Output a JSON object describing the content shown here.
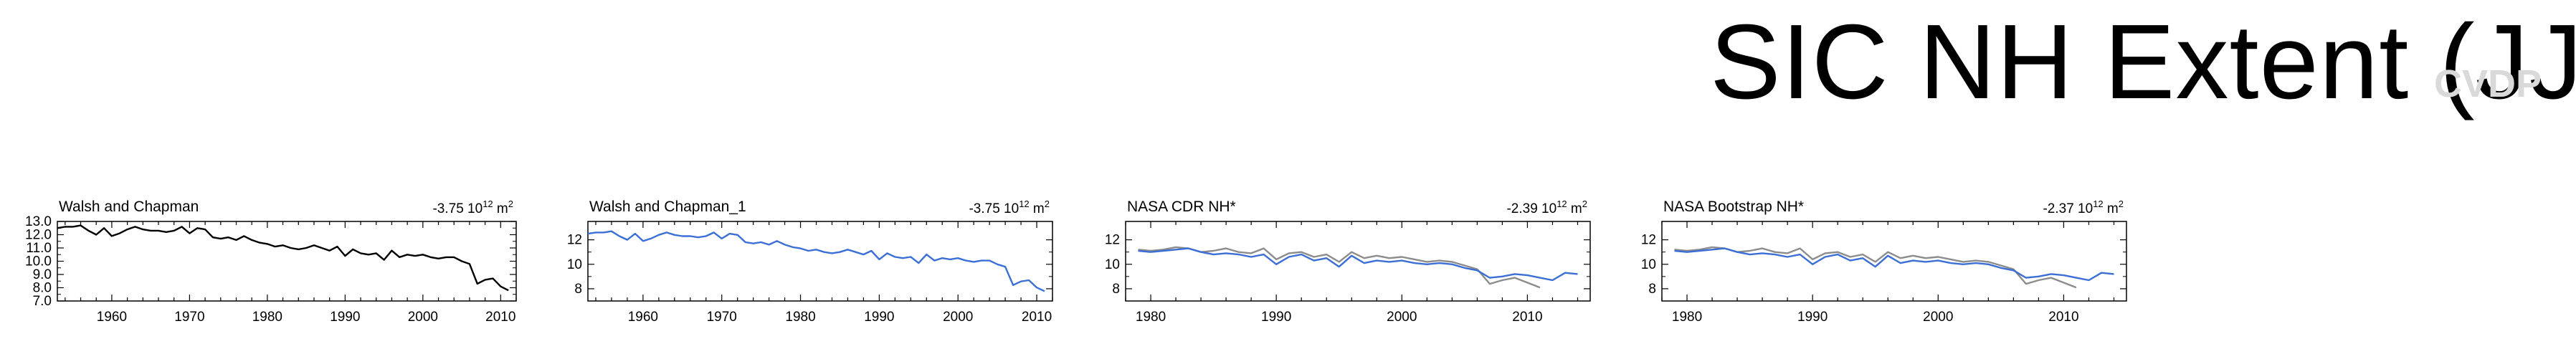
{
  "title": "SIC NH Extent (JJA)",
  "watermark": "CVDP",
  "colors": {
    "obs": "#000000",
    "model": "#3b6fd6",
    "reference": "#8c8c8c"
  },
  "chart_data": [
    {
      "type": "line",
      "title": "Walsh and Chapman",
      "trend": "-3.75 10",
      "trend_exp": "12",
      "trend_unit": "m",
      "trend_unit_exp": "2",
      "xlim": [
        1953,
        2012
      ],
      "ylim": [
        7.0,
        13.0
      ],
      "xticks": [
        1960,
        1970,
        1980,
        1990,
        2000,
        2010
      ],
      "yticks": [
        7.0,
        8.0,
        9.0,
        10.0,
        11.0,
        12.0,
        13.0
      ],
      "ytick_labels": [
        "7.0",
        "8.0",
        "9.0",
        "10.0",
        "11.0",
        "12.0",
        "13.0"
      ],
      "series": [
        {
          "color": "obs",
          "x": [
            1953,
            1954,
            1955,
            1956,
            1957,
            1958,
            1959,
            1960,
            1961,
            1962,
            1963,
            1964,
            1965,
            1966,
            1967,
            1968,
            1969,
            1970,
            1971,
            1972,
            1973,
            1974,
            1975,
            1976,
            1977,
            1978,
            1979,
            1980,
            1981,
            1982,
            1983,
            1984,
            1985,
            1986,
            1987,
            1988,
            1989,
            1990,
            1991,
            1992,
            1993,
            1994,
            1995,
            1996,
            1997,
            1998,
            1999,
            2000,
            2001,
            2002,
            2003,
            2004,
            2005,
            2006,
            2007,
            2008,
            2009,
            2010,
            2011
          ],
          "y": [
            12.5,
            12.6,
            12.6,
            12.7,
            12.3,
            12.0,
            12.5,
            11.9,
            12.1,
            12.4,
            12.6,
            12.4,
            12.3,
            12.3,
            12.2,
            12.3,
            12.6,
            12.1,
            12.5,
            12.4,
            11.8,
            11.7,
            11.8,
            11.6,
            11.9,
            11.6,
            11.4,
            11.3,
            11.1,
            11.2,
            11.0,
            10.9,
            11.0,
            11.2,
            11.0,
            10.8,
            11.1,
            10.4,
            10.9,
            10.6,
            10.5,
            10.6,
            10.1,
            10.8,
            10.3,
            10.5,
            10.4,
            10.5,
            10.3,
            10.2,
            10.3,
            10.3,
            10.0,
            9.8,
            8.3,
            8.6,
            8.7,
            8.1,
            7.8
          ]
        }
      ]
    },
    {
      "type": "line",
      "title": "Walsh and Chapman_1",
      "trend": "-3.75 10",
      "trend_exp": "12",
      "trend_unit": "m",
      "trend_unit_exp": "2",
      "xlim": [
        1953,
        2012
      ],
      "ylim": [
        7.0,
        13.5
      ],
      "xticks": [
        1960,
        1970,
        1980,
        1990,
        2000,
        2010
      ],
      "yticks": [
        8,
        10,
        12
      ],
      "ytick_labels": [
        "8",
        "10",
        "12"
      ],
      "series": [
        {
          "color": "model",
          "x": [
            1953,
            1954,
            1955,
            1956,
            1957,
            1958,
            1959,
            1960,
            1961,
            1962,
            1963,
            1964,
            1965,
            1966,
            1967,
            1968,
            1969,
            1970,
            1971,
            1972,
            1973,
            1974,
            1975,
            1976,
            1977,
            1978,
            1979,
            1980,
            1981,
            1982,
            1983,
            1984,
            1985,
            1986,
            1987,
            1988,
            1989,
            1990,
            1991,
            1992,
            1993,
            1994,
            1995,
            1996,
            1997,
            1998,
            1999,
            2000,
            2001,
            2002,
            2003,
            2004,
            2005,
            2006,
            2007,
            2008,
            2009,
            2010,
            2011
          ],
          "y": [
            12.5,
            12.6,
            12.6,
            12.7,
            12.3,
            12.0,
            12.5,
            11.9,
            12.1,
            12.4,
            12.6,
            12.4,
            12.3,
            12.3,
            12.2,
            12.3,
            12.6,
            12.1,
            12.5,
            12.4,
            11.8,
            11.7,
            11.8,
            11.6,
            11.9,
            11.6,
            11.4,
            11.3,
            11.1,
            11.2,
            11.0,
            10.9,
            11.0,
            11.2,
            11.0,
            10.8,
            11.1,
            10.4,
            10.9,
            10.6,
            10.5,
            10.6,
            10.1,
            10.8,
            10.3,
            10.5,
            10.4,
            10.5,
            10.3,
            10.2,
            10.3,
            10.3,
            10.0,
            9.8,
            8.3,
            8.6,
            8.7,
            8.1,
            7.8
          ]
        }
      ]
    },
    {
      "type": "line",
      "title": "NASA CDR NH*",
      "trend": "-2.39 10",
      "trend_exp": "12",
      "trend_unit": "m",
      "trend_unit_exp": "2",
      "xlim": [
        1978,
        2015
      ],
      "ylim": [
        7.0,
        13.5
      ],
      "xticks": [
        1980,
        1990,
        2000,
        2010
      ],
      "yticks": [
        8,
        10,
        12
      ],
      "ytick_labels": [
        "8",
        "10",
        "12"
      ],
      "series": [
        {
          "color": "reference",
          "x": [
            1979,
            1980,
            1981,
            1982,
            1983,
            1984,
            1985,
            1986,
            1987,
            1988,
            1989,
            1990,
            1991,
            1992,
            1993,
            1994,
            1995,
            1996,
            1997,
            1998,
            1999,
            2000,
            2001,
            2002,
            2003,
            2004,
            2005,
            2006,
            2007,
            2008,
            2009,
            2010,
            2011
          ],
          "y": [
            11.2,
            11.1,
            11.2,
            11.4,
            11.3,
            11.0,
            11.1,
            11.3,
            11.0,
            10.9,
            11.3,
            10.4,
            10.9,
            11.0,
            10.6,
            10.8,
            10.2,
            11.0,
            10.5,
            10.7,
            10.5,
            10.6,
            10.4,
            10.2,
            10.3,
            10.2,
            9.9,
            9.6,
            8.4,
            8.7,
            8.9,
            8.5,
            8.1
          ]
        },
        {
          "color": "model",
          "x": [
            1979,
            1980,
            1981,
            1982,
            1983,
            1984,
            1985,
            1986,
            1987,
            1988,
            1989,
            1990,
            1991,
            1992,
            1993,
            1994,
            1995,
            1996,
            1997,
            1998,
            1999,
            2000,
            2001,
            2002,
            2003,
            2004,
            2005,
            2006,
            2007,
            2008,
            2009,
            2010,
            2011,
            2012,
            2013,
            2014
          ],
          "y": [
            11.1,
            11.0,
            11.1,
            11.2,
            11.3,
            11.0,
            10.8,
            10.9,
            10.8,
            10.6,
            10.8,
            10.0,
            10.6,
            10.8,
            10.3,
            10.5,
            9.8,
            10.7,
            10.1,
            10.3,
            10.2,
            10.3,
            10.1,
            10.0,
            10.1,
            10.0,
            9.7,
            9.5,
            8.9,
            9.0,
            9.2,
            9.1,
            8.9,
            8.7,
            9.3,
            9.2
          ]
        }
      ]
    },
    {
      "type": "line",
      "title": "NASA Bootstrap NH*",
      "trend": "-2.37 10",
      "trend_exp": "12",
      "trend_unit": "m",
      "trend_unit_exp": "2",
      "xlim": [
        1978,
        2015
      ],
      "ylim": [
        7.0,
        13.5
      ],
      "xticks": [
        1980,
        1990,
        2000,
        2010
      ],
      "yticks": [
        8,
        10,
        12
      ],
      "ytick_labels": [
        "8",
        "10",
        "12"
      ],
      "series": [
        {
          "color": "reference",
          "x": [
            1979,
            1980,
            1981,
            1982,
            1983,
            1984,
            1985,
            1986,
            1987,
            1988,
            1989,
            1990,
            1991,
            1992,
            1993,
            1994,
            1995,
            1996,
            1997,
            1998,
            1999,
            2000,
            2001,
            2002,
            2003,
            2004,
            2005,
            2006,
            2007,
            2008,
            2009,
            2010,
            2011
          ],
          "y": [
            11.2,
            11.1,
            11.2,
            11.4,
            11.3,
            11.0,
            11.1,
            11.3,
            11.0,
            10.9,
            11.3,
            10.4,
            10.9,
            11.0,
            10.6,
            10.8,
            10.2,
            11.0,
            10.5,
            10.7,
            10.5,
            10.6,
            10.4,
            10.2,
            10.3,
            10.2,
            9.9,
            9.6,
            8.4,
            8.7,
            8.9,
            8.5,
            8.1
          ]
        },
        {
          "color": "model",
          "x": [
            1979,
            1980,
            1981,
            1982,
            1983,
            1984,
            1985,
            1986,
            1987,
            1988,
            1989,
            1990,
            1991,
            1992,
            1993,
            1994,
            1995,
            1996,
            1997,
            1998,
            1999,
            2000,
            2001,
            2002,
            2003,
            2004,
            2005,
            2006,
            2007,
            2008,
            2009,
            2010,
            2011,
            2012,
            2013,
            2014
          ],
          "y": [
            11.1,
            11.0,
            11.1,
            11.2,
            11.3,
            11.0,
            10.8,
            10.9,
            10.8,
            10.6,
            10.8,
            10.0,
            10.6,
            10.8,
            10.3,
            10.5,
            9.8,
            10.7,
            10.1,
            10.3,
            10.2,
            10.3,
            10.1,
            10.0,
            10.1,
            10.0,
            9.7,
            9.5,
            8.9,
            9.0,
            9.2,
            9.1,
            8.9,
            8.7,
            9.3,
            9.2
          ]
        }
      ]
    }
  ]
}
